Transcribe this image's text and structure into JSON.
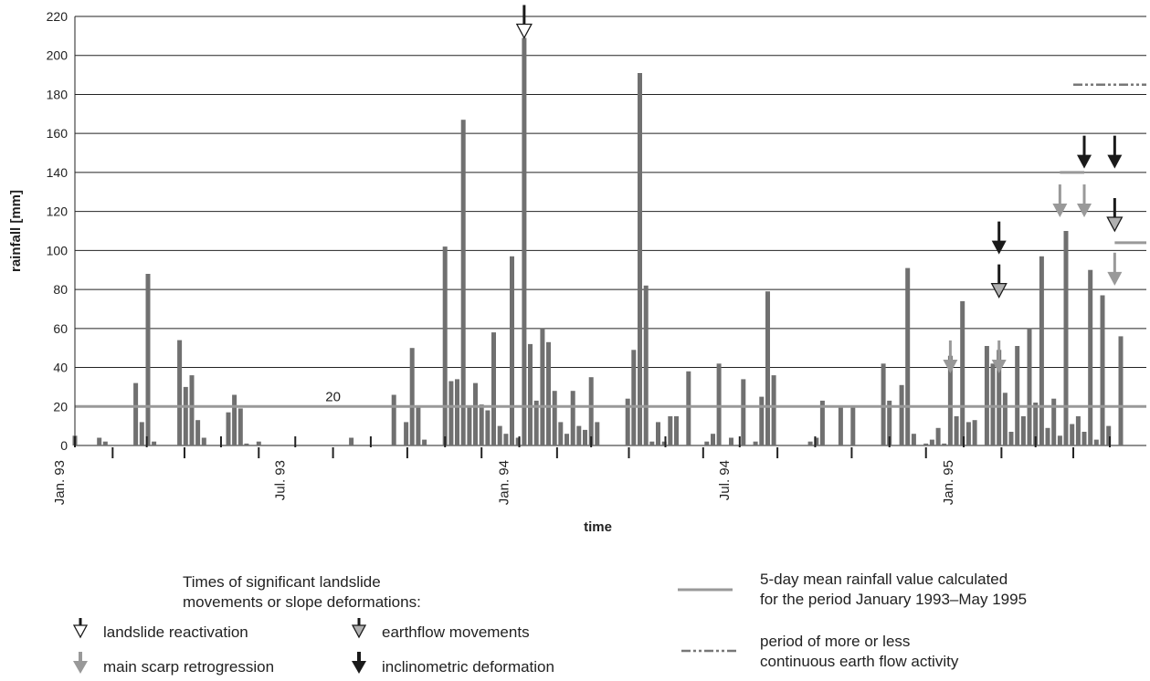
{
  "chart_data": {
    "type": "bar",
    "ylabel": "rainfall [mm]",
    "xlabel": "time",
    "ylim": [
      0,
      220
    ],
    "yticks": [
      0,
      20,
      40,
      60,
      80,
      100,
      120,
      140,
      160,
      180,
      200,
      220
    ],
    "grid": "horizontal",
    "x_date_range": [
      "1993-01-01",
      "1995-05-31"
    ],
    "x_tick_labels": [
      {
        "date": "1993-01-01",
        "label": "Jan. 93"
      },
      {
        "date": "1993-07-01",
        "label": "Jul. 93"
      },
      {
        "date": "1994-01-01",
        "label": "Jan. 94"
      },
      {
        "date": "1994-07-01",
        "label": "Jul. 94"
      },
      {
        "date": "1995-01-01",
        "label": "Jan. 95"
      }
    ],
    "month_ticks": [
      "1993-01-01",
      "1993-02-01",
      "1993-03-01",
      "1993-04-01",
      "1993-05-01",
      "1993-06-01",
      "1993-07-01",
      "1993-08-01",
      "1993-09-01",
      "1993-10-01",
      "1993-11-01",
      "1993-12-01",
      "1994-01-01",
      "1994-02-01",
      "1994-03-01",
      "1994-04-01",
      "1994-05-01",
      "1994-06-01",
      "1994-07-01",
      "1994-08-01",
      "1994-09-01",
      "1994-10-01",
      "1994-11-01",
      "1994-12-01",
      "1995-01-01",
      "1995-02-01",
      "1995-03-01",
      "1995-04-01",
      "1995-05-01"
    ],
    "series": [
      {
        "bar_color": "#707070",
        "values": [
          {
            "date": "1993-01-01",
            "y": 5
          },
          {
            "date": "1993-01-21",
            "y": 4
          },
          {
            "date": "1993-01-26",
            "y": 2
          },
          {
            "date": "1993-02-20",
            "y": 32
          },
          {
            "date": "1993-02-25",
            "y": 12
          },
          {
            "date": "1993-03-02",
            "y": 88
          },
          {
            "date": "1993-03-07",
            "y": 2
          },
          {
            "date": "1993-03-28",
            "y": 54
          },
          {
            "date": "1993-04-02",
            "y": 30
          },
          {
            "date": "1993-04-07",
            "y": 36
          },
          {
            "date": "1993-04-12",
            "y": 13
          },
          {
            "date": "1993-04-17",
            "y": 4
          },
          {
            "date": "1993-05-07",
            "y": 17
          },
          {
            "date": "1993-05-12",
            "y": 26
          },
          {
            "date": "1993-05-17",
            "y": 19
          },
          {
            "date": "1993-05-22",
            "y": 1
          },
          {
            "date": "1993-06-01",
            "y": 2
          },
          {
            "date": "1993-08-16",
            "y": 4
          },
          {
            "date": "1993-09-20",
            "y": 26
          },
          {
            "date": "1993-09-30",
            "y": 12
          },
          {
            "date": "1993-10-05",
            "y": 50
          },
          {
            "date": "1993-10-10",
            "y": 20
          },
          {
            "date": "1993-10-15",
            "y": 3
          },
          {
            "date": "1993-11-01",
            "y": 102
          },
          {
            "date": "1993-11-06",
            "y": 33
          },
          {
            "date": "1993-11-11",
            "y": 34
          },
          {
            "date": "1993-11-16",
            "y": 167
          },
          {
            "date": "1993-11-21",
            "y": 20
          },
          {
            "date": "1993-11-26",
            "y": 32
          },
          {
            "date": "1993-12-01",
            "y": 21
          },
          {
            "date": "1993-12-06",
            "y": 18
          },
          {
            "date": "1993-12-11",
            "y": 58
          },
          {
            "date": "1993-12-16",
            "y": 10
          },
          {
            "date": "1993-12-21",
            "y": 6
          },
          {
            "date": "1993-12-26",
            "y": 97
          },
          {
            "date": "1993-12-31",
            "y": 4
          },
          {
            "date": "1994-01-05",
            "y": 209
          },
          {
            "date": "1994-01-10",
            "y": 52
          },
          {
            "date": "1994-01-15",
            "y": 23
          },
          {
            "date": "1994-01-20",
            "y": 60
          },
          {
            "date": "1994-01-25",
            "y": 53
          },
          {
            "date": "1994-01-30",
            "y": 28
          },
          {
            "date": "1994-02-04",
            "y": 12
          },
          {
            "date": "1994-02-09",
            "y": 6
          },
          {
            "date": "1994-02-14",
            "y": 28
          },
          {
            "date": "1994-02-19",
            "y": 10
          },
          {
            "date": "1994-02-24",
            "y": 8
          },
          {
            "date": "1994-03-01",
            "y": 35
          },
          {
            "date": "1994-03-06",
            "y": 12
          },
          {
            "date": "1994-03-31",
            "y": 24
          },
          {
            "date": "1994-04-05",
            "y": 49
          },
          {
            "date": "1994-04-10",
            "y": 191
          },
          {
            "date": "1994-04-15",
            "y": 82
          },
          {
            "date": "1994-04-20",
            "y": 2
          },
          {
            "date": "1994-04-25",
            "y": 12
          },
          {
            "date": "1994-04-30",
            "y": 2
          },
          {
            "date": "1994-05-05",
            "y": 15
          },
          {
            "date": "1994-05-10",
            "y": 15
          },
          {
            "date": "1994-05-20",
            "y": 38
          },
          {
            "date": "1994-06-04",
            "y": 2
          },
          {
            "date": "1994-06-09",
            "y": 6
          },
          {
            "date": "1994-06-14",
            "y": 42
          },
          {
            "date": "1994-06-24",
            "y": 4
          },
          {
            "date": "1994-07-04",
            "y": 34
          },
          {
            "date": "1994-07-14",
            "y": 2
          },
          {
            "date": "1994-07-19",
            "y": 25
          },
          {
            "date": "1994-07-24",
            "y": 79
          },
          {
            "date": "1994-07-29",
            "y": 36
          },
          {
            "date": "1994-08-28",
            "y": 2
          },
          {
            "date": "1994-09-02",
            "y": 4
          },
          {
            "date": "1994-09-07",
            "y": 23
          },
          {
            "date": "1994-09-22",
            "y": 20
          },
          {
            "date": "1994-10-02",
            "y": 20
          },
          {
            "date": "1994-10-27",
            "y": 42
          },
          {
            "date": "1994-11-01",
            "y": 23
          },
          {
            "date": "1994-11-11",
            "y": 31
          },
          {
            "date": "1994-11-16",
            "y": 91
          },
          {
            "date": "1994-11-21",
            "y": 6
          },
          {
            "date": "1994-12-01",
            "y": 1
          },
          {
            "date": "1994-12-06",
            "y": 3
          },
          {
            "date": "1994-12-11",
            "y": 9
          },
          {
            "date": "1994-12-16",
            "y": 1
          },
          {
            "date": "1994-12-21",
            "y": 46
          },
          {
            "date": "1994-12-26",
            "y": 15
          },
          {
            "date": "1994-12-31",
            "y": 74
          },
          {
            "date": "1995-01-05",
            "y": 12
          },
          {
            "date": "1995-01-10",
            "y": 13
          },
          {
            "date": "1995-01-20",
            "y": 51
          },
          {
            "date": "1995-01-25",
            "y": 42
          },
          {
            "date": "1995-01-30",
            "y": 49
          },
          {
            "date": "1995-02-04",
            "y": 27
          },
          {
            "date": "1995-02-09",
            "y": 7
          },
          {
            "date": "1995-02-14",
            "y": 51
          },
          {
            "date": "1995-02-19",
            "y": 15
          },
          {
            "date": "1995-02-24",
            "y": 60
          },
          {
            "date": "1995-03-01",
            "y": 22
          },
          {
            "date": "1995-03-06",
            "y": 97
          },
          {
            "date": "1995-03-11",
            "y": 9
          },
          {
            "date": "1995-03-16",
            "y": 24
          },
          {
            "date": "1995-03-21",
            "y": 5
          },
          {
            "date": "1995-03-26",
            "y": 110
          },
          {
            "date": "1995-03-31",
            "y": 11
          },
          {
            "date": "1995-04-05",
            "y": 15
          },
          {
            "date": "1995-04-10",
            "y": 7
          },
          {
            "date": "1995-04-15",
            "y": 90
          },
          {
            "date": "1995-04-20",
            "y": 3
          },
          {
            "date": "1995-04-25",
            "y": 77
          },
          {
            "date": "1995-04-30",
            "y": 10
          },
          {
            "date": "1995-05-10",
            "y": 56
          }
        ]
      }
    ],
    "reference_line": {
      "y": 20,
      "label": "20",
      "color": "#999999"
    },
    "activity_period": {
      "start": "1995-04-01",
      "end": "1995-05-31",
      "y": 185,
      "color": "#777777"
    },
    "event_markers": [
      {
        "date": "1994-01-05",
        "y": 209,
        "type": "reactivation"
      },
      {
        "date": "1994-12-21",
        "y": 37,
        "type": "main_scarp"
      },
      {
        "date": "1995-01-30",
        "y": 37,
        "type": "main_scarp"
      },
      {
        "date": "1995-01-30",
        "y": 98,
        "type": "inclinometric"
      },
      {
        "date": "1995-01-30",
        "y": 76,
        "type": "earthflow"
      },
      {
        "date": "1995-03-21",
        "y": 117,
        "type": "main_scarp"
      },
      {
        "date": "1995-04-10",
        "y": 117,
        "type": "main_scarp"
      },
      {
        "date": "1995-04-10",
        "y": 142,
        "type": "inclinometric"
      },
      {
        "date": "1995-05-05",
        "y": 142,
        "type": "inclinometric"
      },
      {
        "date": "1995-05-05",
        "y": 110,
        "type": "earthflow"
      },
      {
        "date": "1995-05-05",
        "y": 82,
        "type": "main_scarp"
      }
    ],
    "bracket_groups": [
      {
        "start": "1995-03-21",
        "end": "1995-04-10",
        "y": 140,
        "color": "#999999"
      },
      {
        "start": "1995-05-05",
        "end": "1995-05-31",
        "y": 104,
        "color": "#999999"
      }
    ]
  },
  "legend": {
    "heading_line1": "Times of significant landslide",
    "heading_line2": "movements or slope deformations:",
    "reactivation": "landslide reactivation",
    "earthflow": "earthflow movements",
    "main_scarp": "main scarp retrogression",
    "inclinometric": "inclinometric deformation",
    "mean_line1": "5-day mean rainfall value calculated",
    "mean_line2": "for the period January 1993–May 1995",
    "period_line1": "period of more or less",
    "period_line2": "continuous earth flow activity"
  },
  "colors": {
    "bar": "#707070",
    "mean_line": "#999999",
    "event_dark": "#1a1a1a",
    "event_light": "#999999",
    "event_earthflow_fill": "#b0b0b0"
  }
}
